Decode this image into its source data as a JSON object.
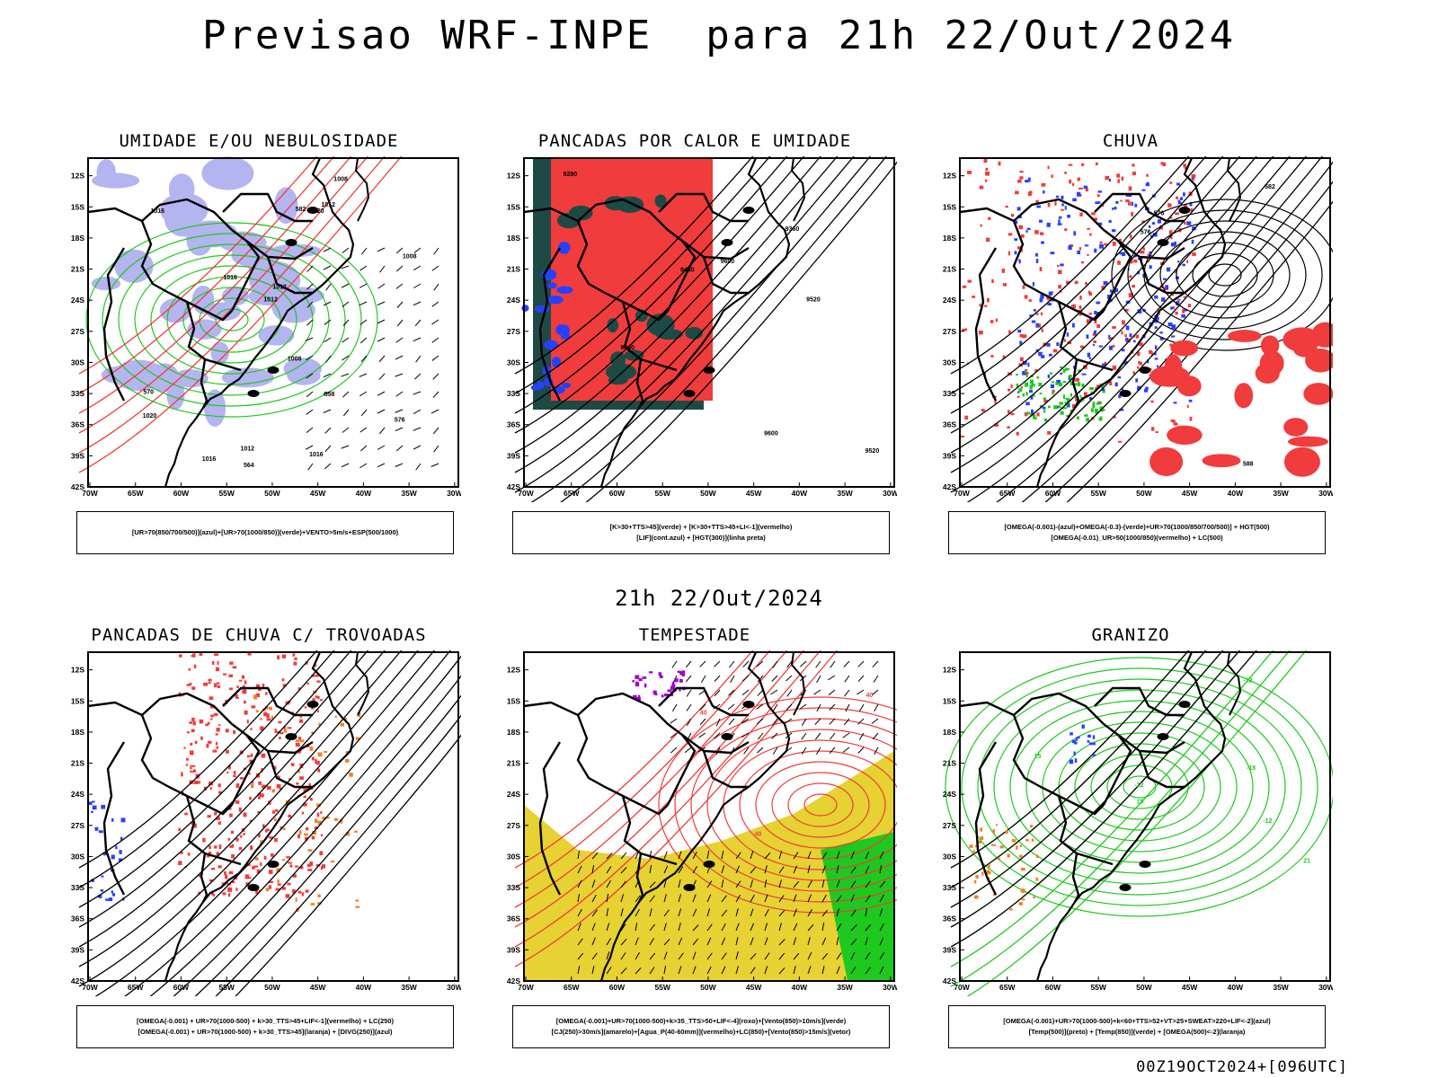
{
  "title": "Previsao WRF-INPE  para 21h 22/Out/2024",
  "mid_date": "21h 22/Out/2024",
  "footer": "00Z19OCT2024+[096UTC]",
  "axes": {
    "lat_labels": [
      "12S",
      "15S",
      "18S",
      "21S",
      "24S",
      "27S",
      "30S",
      "33S",
      "36S",
      "39S",
      "42S"
    ],
    "lon_labels": [
      "70W",
      "65W",
      "60W",
      "55W",
      "50W",
      "45W",
      "40W",
      "35W",
      "30W"
    ]
  },
  "colors": {
    "red": "#f03c3c",
    "green": "#1fc81f",
    "blue": "#2840ff",
    "lavender": "#b4b4f0",
    "darkteal": "#1e4a46",
    "orange": "#f08228",
    "yellow": "#e6d232",
    "purple": "#a000c8"
  },
  "panels": [
    {
      "title": "UMIDADE E/OU NEBULOSIDADE",
      "legend": [
        "[UR>70(850/700/500)](azul)+[UR>70(1000/850)](verde)+VENTO>5m/s+ESP(500/1000)"
      ],
      "labels": [
        "1012",
        "1016",
        "1008",
        "1012",
        "1016",
        "1020",
        "1008",
        "1012",
        "1016",
        "1020",
        "1008",
        "1012",
        "1016",
        "570",
        "576",
        "582",
        "564",
        "558"
      ]
    },
    {
      "title": "PANCADAS POR CALOR E UMIDADE",
      "legend": [
        "[K>30+TTS>45](verde) + [K>30+TTS>45+LI<-1](vermelho)",
        "[LIF](cont.azul) + [HGT(300)](linha preta)"
      ],
      "labels": [
        "9600",
        "9520",
        "9440",
        "9600",
        "9520",
        "9440",
        "9360",
        "9280"
      ]
    },
    {
      "title": "CHUVA",
      "legend": [
        "[OMEGA(-0.001)-(azul)+OMEGA(-0.3)-(verde)+UR>70(1000/850/700/500)] + HGT(500)",
        "[OMEGA(-0.01)_UR>50(1000/850)(vermelho) + LC(500)"
      ],
      "labels": [
        "588",
        "582",
        "576",
        "576"
      ]
    },
    {
      "title": "PANCADAS DE CHUVA C/ TROVOADAS",
      "legend": [
        "[OMEGA(-0.001) + UR>70(1000-500) + k>30_TTS>45+LIF<-1](vermelho) + LC(250)",
        "[OMEGA(-0.001) + UR>70(1000-500) + k>30_TTS>45](laranja) + [DIVG(250)](azul)"
      ],
      "labels": []
    },
    {
      "title": "TEMPESTADE",
      "legend": [
        "[OMEGA(-0.001)+UR>70(1000-500)+k>35_TTS>50+LIF<-4](roxo)+[Vento(850)>10m/s](verde)",
        "[CJ(250)>30m/s](amarelo)+[Agua_P(40-60mm)](vermelho)+LC(850)+[Vento(850)>15m/s](vetor)"
      ],
      "labels": [
        "40",
        "40",
        "40"
      ]
    },
    {
      "title": "GRANIZO",
      "legend": [
        "[OMEGA(-0.001)+UR>70(1000-500)+k<60+TTS>52+VT>25+SWEAT>220+LIF<-2](azul)",
        "[Temp(500)](preto) + [Temp(850)](verde) + [OMEGA(500)<-2](laranja)"
      ],
      "labels": [
        "-12",
        "-18",
        "-12",
        "15",
        "21",
        "15",
        "-12"
      ]
    }
  ]
}
